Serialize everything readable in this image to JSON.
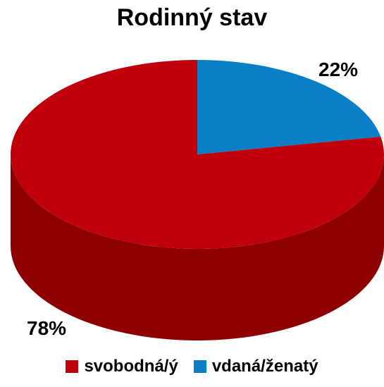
{
  "chart_data": {
    "type": "pie",
    "title": "Rodinný stav",
    "categories": [
      "svobodná/ý",
      "vdaná/ženatý"
    ],
    "values": [
      78,
      22
    ],
    "labels": [
      "78%",
      "22%"
    ],
    "colors": {
      "svobodná/ý": "#c0000a",
      "vdaná/ženatý": "#0a7fc6"
    },
    "side_colors": {
      "svobodná/ý": "#8e0000",
      "vdaná/ženatý": "#065a8c"
    },
    "legend_position": "bottom",
    "style": "3d"
  }
}
